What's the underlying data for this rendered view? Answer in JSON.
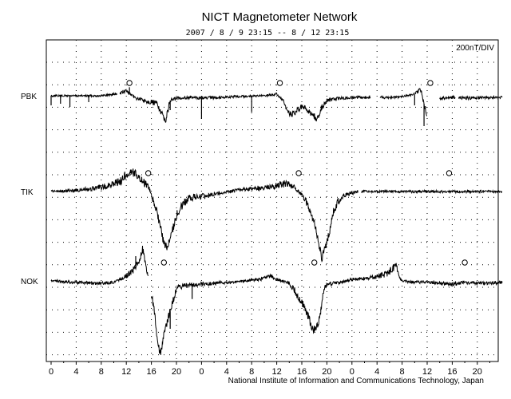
{
  "chart_data": {
    "type": "line",
    "title": "NICT Magnetometer Network",
    "subtitle": "2007 / 8 / 9   23:15 --  8 / 12   23:15",
    "scale_label": "200nT/DIV",
    "footer": "National Institute of Information and Communications Technology, Japan",
    "x_tick_labels": [
      "0",
      "4",
      "8",
      "12",
      "16",
      "20",
      "0",
      "4",
      "8",
      "12",
      "16",
      "20",
      "0",
      "4",
      "8",
      "12",
      "16",
      "20"
    ],
    "xlim": [
      0,
      72
    ],
    "grid": true,
    "series": [
      {
        "name": "PBK",
        "markers_hours": [
          12.5,
          36.5,
          60.5
        ]
      },
      {
        "name": "TIK",
        "markers_hours": [
          15.5,
          39.5,
          63.5
        ]
      },
      {
        "name": "NOK",
        "markers_hours": [
          18,
          42,
          66
        ]
      }
    ],
    "colors": {
      "line": "#000000",
      "grid": "#000000",
      "background": "#ffffff"
    }
  }
}
